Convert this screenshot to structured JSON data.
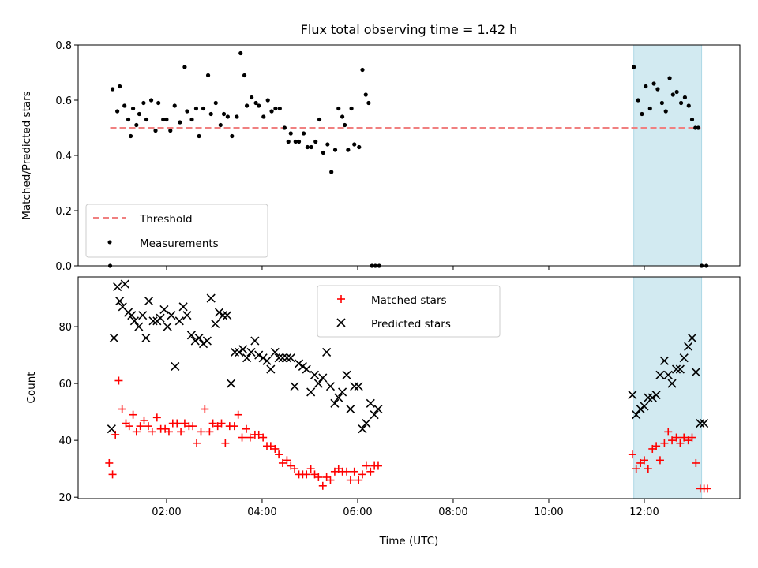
{
  "chart_data": {
    "title": "Flux total observing time = 1.42 h",
    "xlabel": "Time (UTC)",
    "x_unit": "hours UTC",
    "xlim": [
      0.15,
      14.0
    ],
    "x_ticks": [
      2,
      4,
      6,
      8,
      10,
      12
    ],
    "x_tick_labels": [
      "02:00",
      "04:00",
      "06:00",
      "08:00",
      "10:00",
      "12:00"
    ],
    "shaded_span": {
      "x0": 11.78,
      "x1": 13.2,
      "color": "#add8e6"
    },
    "colors": {
      "threshold": "#f08080",
      "measurements": "#000000",
      "matched": "#ff0000",
      "predicted": "#000000"
    },
    "top": {
      "type": "scatter",
      "ylabel": "Matched/Predicted stars",
      "ylim": [
        0.0,
        0.8
      ],
      "y_ticks": [
        0.0,
        0.2,
        0.4,
        0.6,
        0.8
      ],
      "y_tick_labels": [
        "0.0",
        "0.2",
        "0.4",
        "0.6",
        "0.8"
      ],
      "threshold": {
        "name": "Threshold",
        "value": 0.5,
        "x_range": [
          0.82,
          13.18
        ]
      },
      "legend": {
        "position": "lower-left",
        "entries": [
          "Threshold",
          "Measurements"
        ]
      },
      "series": [
        {
          "name": "Measurements",
          "x": [
            0.82,
            0.87,
            0.97,
            1.02,
            1.12,
            1.2,
            1.25,
            1.3,
            1.37,
            1.43,
            1.52,
            1.58,
            1.68,
            1.77,
            1.83,
            1.93,
            2.0,
            2.08,
            2.17,
            2.28,
            2.38,
            2.43,
            2.53,
            2.62,
            2.68,
            2.77,
            2.87,
            2.93,
            3.03,
            3.13,
            3.2,
            3.28,
            3.37,
            3.47,
            3.55,
            3.63,
            3.68,
            3.78,
            3.87,
            3.93,
            4.03,
            4.12,
            4.2,
            4.28,
            4.37,
            4.47,
            4.55,
            4.6,
            4.7,
            4.77,
            4.87,
            4.95,
            5.03,
            5.12,
            5.2,
            5.28,
            5.37,
            5.45,
            5.53,
            5.6,
            5.68,
            5.73,
            5.8,
            5.87,
            5.93,
            6.03,
            6.1,
            6.17,
            6.23,
            6.3,
            6.37,
            6.45,
            11.78,
            11.87,
            11.95,
            12.03,
            12.12,
            12.2,
            12.28,
            12.37,
            12.45,
            12.53,
            12.6,
            12.68,
            12.77,
            12.85,
            12.93,
            13.0,
            13.07,
            13.13,
            13.2,
            13.3
          ],
          "y": [
            0.0,
            0.64,
            0.56,
            0.65,
            0.58,
            0.53,
            0.47,
            0.57,
            0.51,
            0.55,
            0.59,
            0.53,
            0.6,
            0.49,
            0.59,
            0.53,
            0.53,
            0.49,
            0.58,
            0.52,
            0.72,
            0.56,
            0.53,
            0.57,
            0.47,
            0.57,
            0.69,
            0.55,
            0.59,
            0.51,
            0.55,
            0.54,
            0.47,
            0.54,
            0.77,
            0.69,
            0.58,
            0.61,
            0.59,
            0.58,
            0.54,
            0.6,
            0.56,
            0.57,
            0.57,
            0.5,
            0.45,
            0.48,
            0.45,
            0.45,
            0.48,
            0.43,
            0.43,
            0.45,
            0.53,
            0.41,
            0.44,
            0.34,
            0.42,
            0.57,
            0.54,
            0.51,
            0.42,
            0.57,
            0.44,
            0.43,
            0.71,
            0.62,
            0.59,
            0.0,
            0.0,
            0.0,
            0.72,
            0.6,
            0.55,
            0.65,
            0.57,
            0.66,
            0.64,
            0.59,
            0.56,
            0.68,
            0.62,
            0.63,
            0.59,
            0.61,
            0.58,
            0.53,
            0.5,
            0.5,
            0.0,
            0.0
          ]
        }
      ]
    },
    "bottom": {
      "type": "scatter",
      "ylabel": "Count",
      "ylim": [
        19.5,
        97.5
      ],
      "y_ticks": [
        20,
        40,
        60,
        80
      ],
      "y_tick_labels": [
        "20",
        "40",
        "60",
        "80"
      ],
      "legend": {
        "position": "upper-center",
        "entries": [
          "Matched stars",
          "Predicted stars"
        ]
      },
      "series": [
        {
          "name": "Matched stars",
          "marker": "plus",
          "x": [
            0.8,
            0.87,
            0.93,
            1.0,
            1.07,
            1.15,
            1.22,
            1.3,
            1.37,
            1.45,
            1.53,
            1.62,
            1.7,
            1.8,
            1.88,
            1.97,
            2.05,
            2.13,
            2.22,
            2.3,
            2.38,
            2.47,
            2.55,
            2.63,
            2.72,
            2.8,
            2.9,
            2.97,
            3.07,
            3.15,
            3.23,
            3.32,
            3.42,
            3.5,
            3.58,
            3.67,
            3.75,
            3.85,
            3.93,
            4.02,
            4.1,
            4.18,
            4.27,
            4.35,
            4.43,
            4.52,
            4.6,
            4.68,
            4.77,
            4.85,
            4.93,
            5.02,
            5.1,
            5.18,
            5.27,
            5.35,
            5.43,
            5.52,
            5.6,
            5.68,
            5.77,
            5.85,
            5.93,
            6.02,
            6.1,
            6.18,
            6.27,
            6.35,
            6.43,
            11.75,
            11.83,
            11.92,
            12.0,
            12.08,
            12.17,
            12.25,
            12.33,
            12.42,
            12.5,
            12.58,
            12.67,
            12.75,
            12.83,
            12.92,
            13.0,
            13.08,
            13.17,
            13.25,
            13.32
          ],
          "y": [
            32,
            28,
            42,
            61,
            51,
            46,
            45,
            49,
            43,
            45,
            47,
            45,
            43,
            48,
            44,
            44,
            43,
            46,
            46,
            43,
            46,
            45,
            45,
            39,
            43,
            51,
            43,
            46,
            45,
            46,
            39,
            45,
            45,
            49,
            41,
            44,
            41,
            42,
            42,
            41,
            38,
            38,
            37,
            35,
            32,
            33,
            31,
            30,
            28,
            28,
            28,
            30,
            28,
            27,
            24,
            27,
            26,
            29,
            30,
            29,
            29,
            26,
            29,
            26,
            28,
            31,
            29,
            31,
            31,
            35,
            30,
            32,
            33,
            30,
            37,
            38,
            33,
            39,
            43,
            40,
            41,
            39,
            41,
            40,
            41,
            32,
            23,
            23,
            23
          ],
          "color": "#ff0000"
        },
        {
          "name": "Predicted stars",
          "marker": "x",
          "x": [
            0.85,
            0.9,
            0.97,
            1.02,
            1.08,
            1.13,
            1.2,
            1.27,
            1.33,
            1.42,
            1.5,
            1.57,
            1.63,
            1.72,
            1.8,
            1.87,
            1.95,
            2.02,
            2.1,
            2.18,
            2.27,
            2.35,
            2.43,
            2.52,
            2.6,
            2.68,
            2.77,
            2.85,
            2.93,
            3.02,
            3.1,
            3.18,
            3.27,
            3.35,
            3.43,
            3.52,
            3.6,
            3.68,
            3.77,
            3.85,
            3.93,
            4.02,
            4.1,
            4.18,
            4.27,
            4.35,
            4.43,
            4.52,
            4.6,
            4.68,
            4.77,
            4.85,
            4.93,
            5.02,
            5.1,
            5.18,
            5.27,
            5.35,
            5.43,
            5.52,
            5.6,
            5.68,
            5.77,
            5.85,
            5.93,
            6.02,
            6.1,
            6.18,
            6.27,
            6.35,
            6.43,
            11.75,
            11.83,
            11.92,
            12.0,
            12.08,
            12.17,
            12.25,
            12.33,
            12.42,
            12.5,
            12.58,
            12.67,
            12.75,
            12.83,
            12.92,
            13.0,
            13.08,
            13.17,
            13.25
          ],
          "y": [
            44,
            76,
            94,
            89,
            87,
            95,
            85,
            84,
            82,
            80,
            84,
            76,
            89,
            82,
            82,
            83,
            86,
            80,
            84,
            66,
            82,
            87,
            84,
            77,
            75,
            76,
            74,
            75,
            90,
            81,
            85,
            84,
            84,
            60,
            71,
            71,
            72,
            69,
            71,
            75,
            70,
            69,
            68,
            65,
            71,
            69,
            69,
            69,
            69,
            59,
            67,
            66,
            65,
            57,
            63,
            60,
            62,
            71,
            59,
            53,
            55,
            57,
            63,
            51,
            59,
            59,
            44,
            46,
            53,
            49,
            51,
            56,
            49,
            51,
            52,
            55,
            55,
            56,
            63,
            68,
            63,
            60,
            65,
            65,
            69,
            73,
            76,
            64,
            46,
            46
          ],
          "color": "#000000"
        }
      ]
    }
  }
}
